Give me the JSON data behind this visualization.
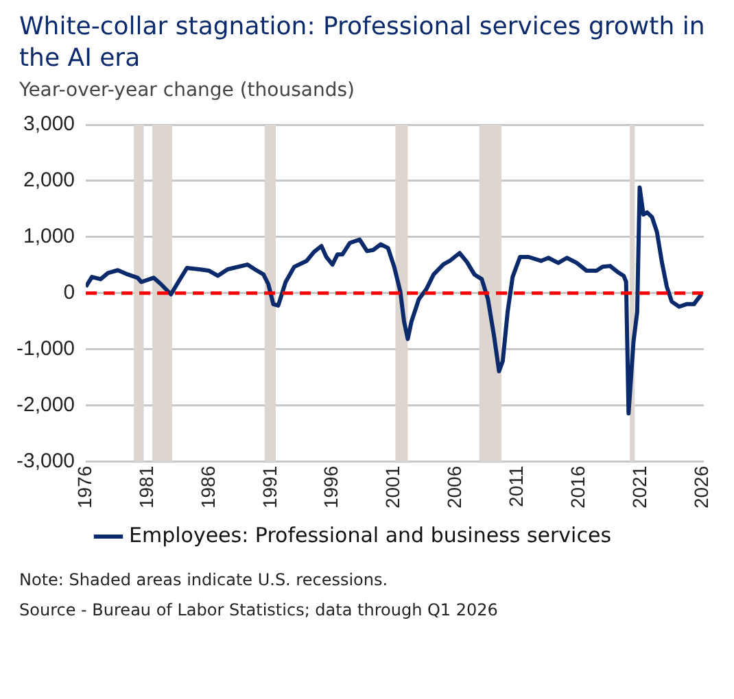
{
  "chart_data": {
    "type": "line",
    "title": "White-collar stagnation: Professional services growth in the AI era",
    "ylabel": "Year-over-year change (thousands)",
    "x": [
      1976.0,
      1976.5,
      1977.2,
      1977.8,
      1978.6,
      1979.4,
      1980.2,
      1980.5,
      1981.5,
      1982.1,
      1982.9,
      1983.5,
      1984.2,
      1985.2,
      1986.0,
      1986.7,
      1987.5,
      1989.1,
      1989.7,
      1990.4,
      1990.8,
      1991.2,
      1991.6,
      1992.2,
      1992.9,
      1993.9,
      1994.5,
      1995.1,
      1995.5,
      1996.0,
      1996.4,
      1996.8,
      1997.4,
      1998.2,
      1998.8,
      1999.3,
      1999.9,
      2000.5,
      2001.0,
      2001.5,
      2001.8,
      2002.1,
      2002.4,
      2003.0,
      2003.6,
      2004.2,
      2005.0,
      2005.5,
      2006.3,
      2006.9,
      2007.5,
      2008.1,
      2008.6,
      2009.1,
      2009.5,
      2009.8,
      2010.2,
      2010.6,
      2011.2,
      2011.9,
      2012.9,
      2013.5,
      2014.3,
      2015.0,
      2015.8,
      2016.6,
      2017.4,
      2017.9,
      2018.5,
      2019.1,
      2019.6,
      2019.8,
      2020.0,
      2020.4,
      2020.7,
      2020.9,
      2021.2,
      2021.5,
      2021.9,
      2022.3,
      2022.7,
      2023.1,
      2023.5,
      2024.1,
      2024.7,
      2025.3,
      2025.9
    ],
    "series": [
      {
        "name": "Employees: Professional and business services",
        "color": "#0b2a6b",
        "values": [
          115,
          290,
          250,
          360,
          410,
          335,
          275,
          200,
          275,
          160,
          -20,
          200,
          450,
          425,
          400,
          310,
          425,
          510,
          425,
          335,
          160,
          -195,
          -220,
          200,
          470,
          575,
          735,
          840,
          645,
          510,
          690,
          690,
          895,
          955,
          750,
          770,
          870,
          805,
          470,
          25,
          -505,
          -815,
          -505,
          -105,
          70,
          335,
          515,
          575,
          715,
          555,
          335,
          250,
          -105,
          -770,
          -1390,
          -1210,
          -325,
          290,
          645,
          645,
          575,
          630,
          540,
          630,
          540,
          400,
          400,
          470,
          485,
          380,
          310,
          205,
          -2140,
          -860,
          -330,
          1885,
          1400,
          1440,
          1355,
          1090,
          555,
          115,
          -150,
          -240,
          -195,
          -195,
          -20
        ]
      }
    ],
    "xlim": [
      1976,
      2026.1
    ],
    "xticks": [
      1976,
      1981,
      1986,
      1991,
      1996,
      2001,
      2006,
      2011,
      2016,
      2021,
      2026
    ],
    "ylim": [
      -3000,
      3000
    ],
    "yticks": [
      {
        "value": -3000,
        "label": "-3,000"
      },
      {
        "value": -2000,
        "label": "-2,000"
      },
      {
        "value": -1000,
        "label": "-1,000"
      },
      0,
      {
        "value": 1000,
        "label": "1,000"
      },
      {
        "value": 2000,
        "label": "2,000"
      },
      {
        "value": 3000,
        "label": "3,000"
      }
    ],
    "grid": "y",
    "legend": "bottom",
    "ref_lines": [
      {
        "axis": "y",
        "value": 0,
        "color": "#ff0000",
        "line_style": "dashed"
      }
    ],
    "bands": [
      {
        "axis": "x",
        "from": 1979.9,
        "to": 1980.7,
        "color": "#ddd5cf"
      },
      {
        "axis": "x",
        "from": 1981.4,
        "to": 1983.0,
        "color": "#ddd5cf"
      },
      {
        "axis": "x",
        "from": 1990.5,
        "to": 1991.4,
        "color": "#ddd5cf"
      },
      {
        "axis": "x",
        "from": 2001.1,
        "to": 2002.1,
        "color": "#ddd5cf"
      },
      {
        "axis": "x",
        "from": 2007.9,
        "to": 2009.7,
        "color": "#ddd5cf"
      },
      {
        "axis": "x",
        "from": 2020.1,
        "to": 2020.5,
        "color": "#ddd5cf"
      }
    ],
    "annotations": [
      "Note: Shaded areas indicate U.S. recessions.",
      "Source - Bureau of Labor Statistics; data through Q1 2026"
    ]
  }
}
